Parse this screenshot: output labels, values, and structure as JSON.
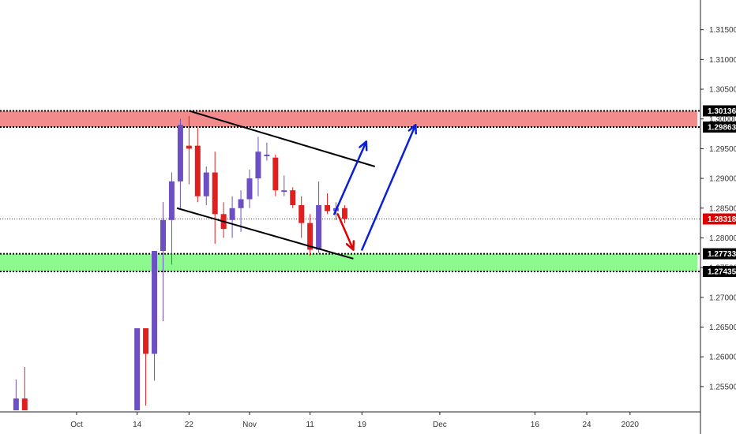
{
  "chart_data": {
    "type": "candlestick",
    "ylim": [
      1.251,
      1.32
    ],
    "y_ticks": [
      "1.25500",
      "1.26000",
      "1.26500",
      "1.27000",
      "1.27500",
      "1.28000",
      "1.28500",
      "1.29000",
      "1.29500",
      "1.30000",
      "1.30500",
      "1.31000",
      "1.31500"
    ],
    "x_ticks": [
      {
        "label": "Oct",
        "index": 0
      },
      {
        "label": "14",
        "index": 7
      },
      {
        "label": "22",
        "index": 13
      },
      {
        "label": "Nov",
        "index": 20
      },
      {
        "label": "11",
        "index": 27
      },
      {
        "label": "19",
        "index": 33
      },
      {
        "label": "Dec",
        "index": 42
      },
      {
        "label": "16",
        "index": 53
      },
      {
        "label": "24",
        "index": 59
      },
      {
        "label": "2020",
        "index": 64
      }
    ],
    "candles": [
      {
        "i": -7,
        "o": 1.251,
        "h": 1.2562,
        "l": 1.251,
        "c": 1.253
      },
      {
        "i": -6,
        "o": 1.253,
        "h": 1.2583,
        "l": 1.251,
        "c": 1.251
      },
      {
        "i": 7,
        "o": 1.251,
        "h": 1.2648,
        "l": 1.251,
        "c": 1.2648
      },
      {
        "i": 8,
        "o": 1.2648,
        "h": 1.2648,
        "l": 1.2518,
        "c": 1.2605
      },
      {
        "i": 9,
        "o": 1.2605,
        "h": 1.2778,
        "l": 1.256,
        "c": 1.2778
      },
      {
        "i": 10,
        "o": 1.2778,
        "h": 1.286,
        "l": 1.266,
        "c": 1.283
      },
      {
        "i": 11,
        "o": 1.283,
        "h": 1.291,
        "l": 1.2755,
        "c": 1.2895
      },
      {
        "i": 12,
        "o": 1.2895,
        "h": 1.3,
        "l": 1.285,
        "c": 1.299
      },
      {
        "i": 13,
        "o": 1.2955,
        "h": 1.3005,
        "l": 1.289,
        "c": 1.295
      },
      {
        "i": 14,
        "o": 1.2955,
        "h": 1.2985,
        "l": 1.286,
        "c": 1.287
      },
      {
        "i": 15,
        "o": 1.287,
        "h": 1.292,
        "l": 1.2855,
        "c": 1.291
      },
      {
        "i": 16,
        "o": 1.291,
        "h": 1.2945,
        "l": 1.279,
        "c": 1.284
      },
      {
        "i": 17,
        "o": 1.284,
        "h": 1.286,
        "l": 1.28,
        "c": 1.2815
      },
      {
        "i": 18,
        "o": 1.283,
        "h": 1.287,
        "l": 1.28,
        "c": 1.285
      },
      {
        "i": 19,
        "o": 1.285,
        "h": 1.288,
        "l": 1.281,
        "c": 1.2865
      },
      {
        "i": 20,
        "o": 1.2865,
        "h": 1.2915,
        "l": 1.285,
        "c": 1.29
      },
      {
        "i": 21,
        "o": 1.29,
        "h": 1.297,
        "l": 1.287,
        "c": 1.2945
      },
      {
        "i": 22,
        "o": 1.294,
        "h": 1.296,
        "l": 1.293,
        "c": 1.294
      },
      {
        "i": 23,
        "o": 1.2935,
        "h": 1.294,
        "l": 1.287,
        "c": 1.288
      },
      {
        "i": 24,
        "o": 1.288,
        "h": 1.2905,
        "l": 1.287,
        "c": 1.288
      },
      {
        "i": 25,
        "o": 1.288,
        "h": 1.2885,
        "l": 1.285,
        "c": 1.2855
      },
      {
        "i": 26,
        "o": 1.2855,
        "h": 1.287,
        "l": 1.28,
        "c": 1.2825
      },
      {
        "i": 27,
        "o": 1.2825,
        "h": 1.284,
        "l": 1.277,
        "c": 1.278
      },
      {
        "i": 28,
        "o": 1.278,
        "h": 1.2895,
        "l": 1.2775,
        "c": 1.2855
      },
      {
        "i": 29,
        "o": 1.2855,
        "h": 1.2875,
        "l": 1.284,
        "c": 1.2845
      },
      {
        "i": 30,
        "o": 1.2845,
        "h": 1.286,
        "l": 1.283,
        "c": 1.285
      },
      {
        "i": 31,
        "o": 1.285,
        "h": 1.2855,
        "l": 1.2825,
        "c": 1.2832
      }
    ],
    "up_color": "#6d4fc4",
    "down_color": "#e02020",
    "zones": [
      {
        "low": 1.29863,
        "high": 1.30136,
        "color": "#f28b8b"
      },
      {
        "low": 1.27435,
        "high": 1.27733,
        "color": "#8cfa8c"
      }
    ],
    "price_labels": [
      {
        "text": "1.30136",
        "value": 1.30136,
        "color": "#000000"
      },
      {
        "text": "1.29863",
        "value": 1.29863,
        "color": "#000000"
      },
      {
        "text": "1.28318",
        "value": 1.28318,
        "color": "#e00000"
      },
      {
        "text": "1.27733",
        "value": 1.27733,
        "color": "#000000"
      },
      {
        "text": "1.27435",
        "value": 1.27435,
        "color": "#000000"
      }
    ],
    "current_price": 1.28318,
    "trendlines": [
      {
        "from": [
          13.0,
          1.30136
        ],
        "to": [
          34.5,
          1.292
        ],
        "color": "#000000"
      },
      {
        "from": [
          11.6,
          1.285
        ],
        "to": [
          32.0,
          1.2765
        ],
        "color": "#000000"
      }
    ],
    "arrows": [
      {
        "from": [
          30.2,
          1.284
        ],
        "to": [
          32.0,
          1.278
        ],
        "color": "#e00000"
      },
      {
        "from": [
          29.8,
          1.284
        ],
        "to": [
          33.5,
          1.2962
        ],
        "color": "#0a1fd6"
      },
      {
        "from": [
          33.0,
          1.278
        ],
        "to": [
          39.2,
          1.299
        ],
        "color": "#0a1fd6"
      }
    ]
  }
}
